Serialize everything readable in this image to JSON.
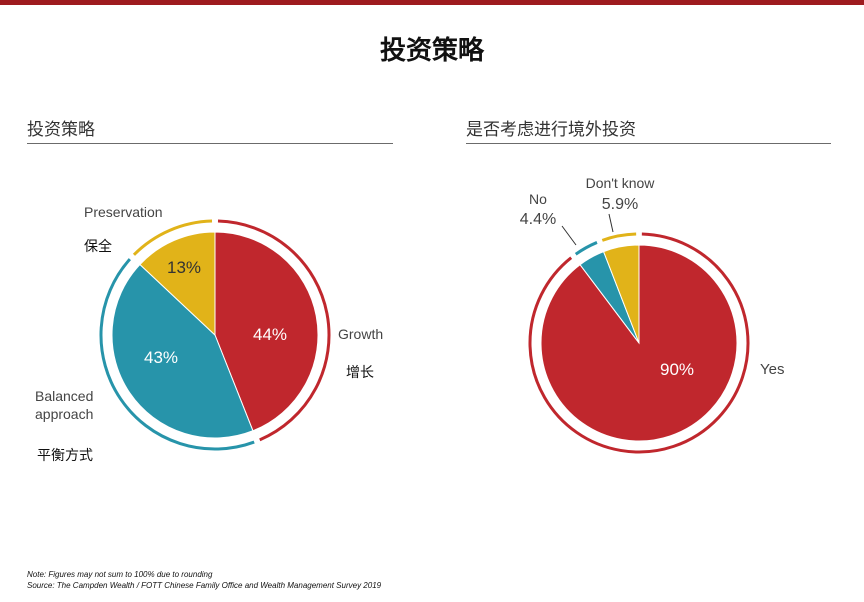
{
  "page": {
    "title": "投资策略"
  },
  "chart_data": [
    {
      "type": "pie",
      "title": "投资策略",
      "slices": [
        {
          "label": "Growth",
          "label_cn": "增长",
          "value": 44,
          "value_label": "44%",
          "color": "#c0272d"
        },
        {
          "label": "Balanced approach",
          "label_cn": "平衡方式",
          "value": 43,
          "value_label": "43%",
          "color": "#2794aa"
        },
        {
          "label": "Preservation",
          "label_cn": "保全",
          "value": 13,
          "value_label": "13%",
          "color": "#e1b319"
        }
      ]
    },
    {
      "type": "pie",
      "title": "是否考虑进行境外投资",
      "slices": [
        {
          "label": "Yes",
          "value": 90,
          "value_label": "90%",
          "color": "#c0272d"
        },
        {
          "label": "No",
          "value": 4.4,
          "value_label": "4.4%",
          "color": "#2794aa"
        },
        {
          "label": "Don't know",
          "value": 5.9,
          "value_label": "5.9%",
          "color": "#e1b319"
        }
      ]
    }
  ],
  "footnotes": {
    "note": "Note: Figures may not sum to 100% due to rounding",
    "source": "Source: The Campden Wealth / FOTT Chinese Family Office and Wealth Management Survey 2019"
  }
}
